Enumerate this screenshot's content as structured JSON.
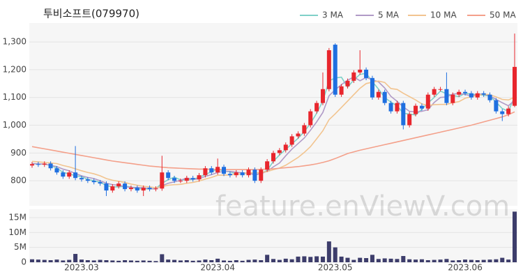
{
  "watermark": "feature.enViewV.com",
  "chart_data": [
    {
      "type": "candlestick",
      "title": "투비소프트(079970)",
      "up_color": "#e8262d",
      "down_color": "#1f6fe0",
      "ylim": [
        710,
        1368
      ],
      "yticks": [
        800,
        900,
        {
          "value": 1000,
          "label": "1,000"
        },
        {
          "value": 1100,
          "label": "1,100"
        },
        {
          "value": 1200,
          "label": "1,200"
        },
        {
          "value": 1300,
          "label": "1,300"
        }
      ],
      "grid": true,
      "open": [
        855,
        860,
        858,
        862,
        845,
        830,
        815,
        830,
        810,
        805,
        800,
        795,
        790,
        765,
        780,
        790,
        770,
        775,
        765,
        775,
        770,
        772,
        830,
        810,
        800,
        800,
        810,
        805,
        820,
        845,
        830,
        850,
        825,
        820,
        830,
        820,
        840,
        800,
        840,
        870,
        900,
        910,
        930,
        960,
        970,
        1000,
        1050,
        1080,
        1130,
        1290,
        1110,
        1140,
        1160,
        1190,
        1200,
        1170,
        1100,
        1120,
        1080,
        1050,
        1080,
        1000,
        1040,
        1070,
        1060,
        1110,
        1130,
        1130,
        1080,
        1110,
        1120,
        1115,
        1100,
        1115,
        1110,
        1090,
        1050,
        1040,
        1070
      ],
      "high": [
        868,
        868,
        870,
        870,
        853,
        838,
        838,
        925,
        818,
        813,
        808,
        803,
        798,
        788,
        798,
        798,
        783,
        783,
        783,
        783,
        780,
        890,
        838,
        818,
        808,
        818,
        818,
        828,
        853,
        853,
        880,
        858,
        833,
        838,
        838,
        848,
        848,
        848,
        878,
        908,
        918,
        938,
        968,
        978,
        1008,
        1058,
        1088,
        1190,
        1278,
        1295,
        1148,
        1168,
        1198,
        1270,
        1208,
        1178,
        1128,
        1128,
        1088,
        1088,
        1088,
        1048,
        1078,
        1078,
        1118,
        1138,
        1138,
        1190,
        1118,
        1128,
        1128,
        1123,
        1123,
        1123,
        1118,
        1098,
        1058,
        1068,
        1330
      ],
      "low": [
        847,
        850,
        850,
        837,
        822,
        807,
        807,
        802,
        797,
        792,
        787,
        782,
        745,
        757,
        772,
        762,
        762,
        757,
        745,
        762,
        762,
        764,
        802,
        792,
        792,
        792,
        797,
        797,
        812,
        822,
        822,
        817,
        812,
        812,
        812,
        812,
        792,
        792,
        832,
        862,
        892,
        902,
        922,
        952,
        962,
        992,
        1042,
        1072,
        1122,
        1102,
        1102,
        1132,
        1152,
        1182,
        1162,
        1092,
        1092,
        1072,
        1042,
        1042,
        985,
        992,
        1032,
        1052,
        1052,
        1102,
        1122,
        1072,
        1072,
        1102,
        1107,
        1092,
        1092,
        1102,
        1082,
        1042,
        1015,
        1032,
        1065
      ],
      "close": [
        860,
        858,
        862,
        845,
        830,
        815,
        830,
        810,
        805,
        800,
        795,
        790,
        765,
        780,
        790,
        770,
        775,
        765,
        775,
        770,
        772,
        830,
        810,
        800,
        800,
        810,
        805,
        820,
        845,
        830,
        850,
        825,
        820,
        830,
        820,
        840,
        800,
        840,
        870,
        900,
        910,
        930,
        960,
        970,
        1000,
        1050,
        1080,
        1130,
        1270,
        1110,
        1140,
        1160,
        1190,
        1200,
        1170,
        1100,
        1120,
        1080,
        1050,
        1080,
        1000,
        1040,
        1070,
        1060,
        1110,
        1130,
        1130,
        1080,
        1110,
        1120,
        1115,
        1100,
        1115,
        1110,
        1090,
        1050,
        1040,
        1060,
        1210
      ],
      "series": [
        {
          "name": "3 MA",
          "color": "#7fd0c8",
          "values": [
            862,
            860,
            860,
            855,
            846,
            830,
            825,
            818,
            815,
            805,
            800,
            795,
            783,
            778,
            778,
            780,
            778,
            770,
            772,
            770,
            772,
            791,
            804,
            813,
            803,
            803,
            805,
            812,
            823,
            832,
            842,
            835,
            832,
            825,
            823,
            830,
            820,
            827,
            837,
            870,
            893,
            913,
            933,
            953,
            977,
            1007,
            1043,
            1087,
            1160,
            1170,
            1173,
            1137,
            1163,
            1183,
            1187,
            1157,
            1130,
            1100,
            1083,
            1070,
            1043,
            1040,
            1037,
            1057,
            1080,
            1100,
            1123,
            1113,
            1107,
            1103,
            1115,
            1112,
            1110,
            1108,
            1105,
            1083,
            1060,
            1050,
            1103
          ]
        },
        {
          "name": "5 MA",
          "color": "#b09ac7",
          "values": [
            862,
            861,
            860,
            856,
            851,
            842,
            836,
            826,
            818,
            812,
            808,
            800,
            791,
            786,
            784,
            779,
            776,
            776,
            775,
            771,
            771,
            782,
            791,
            796,
            802,
            810,
            805,
            807,
            816,
            822,
            830,
            834,
            834,
            831,
            829,
            827,
            822,
            826,
            834,
            850,
            864,
            890,
            914,
            934,
            954,
            982,
            1012,
            1046,
            1106,
            1128,
            1146,
            1162,
            1174,
            1160,
            1172,
            1164,
            1156,
            1134,
            1104,
            1086,
            1066,
            1050,
            1048,
            1050,
            1056,
            1082,
            1100,
            1102,
            1112,
            1114,
            1111,
            1105,
            1112,
            1112,
            1106,
            1093,
            1081,
            1070,
            1090
          ]
        },
        {
          "name": "10 MA",
          "color": "#f2c48f",
          "values": [
            870,
            868,
            866,
            864,
            862,
            855,
            850,
            843,
            836,
            830,
            825,
            818,
            808,
            802,
            798,
            794,
            788,
            784,
            780,
            778,
            775,
            779,
            784,
            786,
            787,
            791,
            794,
            799,
            806,
            812,
            820,
            820,
            821,
            824,
            826,
            829,
            828,
            830,
            833,
            840,
            846,
            856,
            870,
            884,
            902,
            923,
            951,
            980,
            1020,
            1041,
            1064,
            1087,
            1110,
            1133,
            1150,
            1155,
            1159,
            1154,
            1132,
            1129,
            1115,
            1103,
            1091,
            1077,
            1071,
            1074,
            1075,
            1075,
            1081,
            1085,
            1097,
            1103,
            1107,
            1112,
            1110,
            1102,
            1093,
            1091,
            1101
          ]
        },
        {
          "name": "50 MA",
          "color": "#f4a08a",
          "values": [
            923,
            919,
            915,
            911,
            907,
            903,
            899,
            895,
            891,
            887,
            883,
            879,
            875,
            871,
            868,
            865,
            862,
            859,
            856,
            853,
            851,
            849,
            847,
            846,
            845,
            844,
            843,
            842,
            842,
            841,
            841,
            840,
            840,
            840,
            840,
            840,
            840,
            841,
            842,
            843,
            845,
            847,
            849,
            851,
            854,
            857,
            861,
            866,
            872,
            880,
            889,
            898,
            904,
            910,
            915,
            920,
            925,
            930,
            935,
            940,
            945,
            950,
            955,
            960,
            965,
            970,
            975,
            980,
            985,
            990,
            995,
            1000,
            1006,
            1012,
            1018,
            1024,
            1030,
            1038,
            1048
          ]
        }
      ]
    },
    {
      "type": "bar",
      "color": "#3d3d6b",
      "ylim": [
        0,
        17800000
      ],
      "yticks": [
        0,
        {
          "value": 5000000,
          "label": "5M"
        },
        {
          "value": 10000000,
          "label": "10M"
        },
        {
          "value": 15000000,
          "label": "15M"
        }
      ],
      "categories": [
        null,
        null,
        null,
        null,
        null,
        null,
        null,
        null,
        "2023.03",
        null,
        null,
        null,
        null,
        null,
        null,
        null,
        null,
        null,
        null,
        null,
        null,
        null,
        null,
        null,
        null,
        null,
        null,
        null,
        null,
        null,
        "2023.04",
        null,
        null,
        null,
        null,
        null,
        null,
        null,
        null,
        null,
        null,
        null,
        null,
        null,
        null,
        null,
        null,
        null,
        null,
        "2023.05",
        null,
        null,
        null,
        null,
        null,
        null,
        null,
        null,
        null,
        null,
        null,
        null,
        null,
        null,
        null,
        null,
        null,
        null,
        null,
        null,
        "2023.06",
        null,
        null,
        null,
        null,
        null,
        null,
        null,
        null
      ],
      "values": [
        1000000,
        900000,
        800000,
        700000,
        900000,
        600000,
        800000,
        2800000,
        900000,
        700000,
        600000,
        800000,
        700000,
        600000,
        500000,
        700000,
        600000,
        500000,
        600000,
        500000,
        400000,
        2700000,
        900000,
        800000,
        600000,
        700000,
        500000,
        600000,
        900000,
        700000,
        1200000,
        600000,
        500000,
        700000,
        500000,
        800000,
        900000,
        700000,
        2500000,
        1100000,
        800000,
        1200000,
        1000000,
        1900000,
        2000000,
        1800000,
        2000000,
        1900000,
        7000000,
        5000000,
        1900000,
        1500000,
        800000,
        1500000,
        1400000,
        2500000,
        1100000,
        1300000,
        1200000,
        1100000,
        2100000,
        1000000,
        900000,
        1000000,
        700000,
        800000,
        900000,
        1100000,
        600000,
        700000,
        900000,
        800000,
        700000,
        800000,
        900000,
        1000000,
        1500000,
        900000,
        17000000
      ]
    }
  ]
}
